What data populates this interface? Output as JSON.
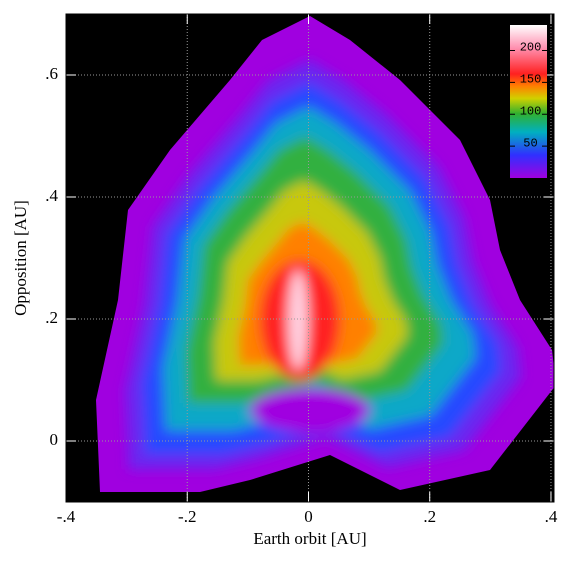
{
  "chart_data": {
    "type": "heatmap",
    "x_label": "Earth orbit [AU]",
    "y_label": "Opposition [AU]",
    "xlim": [
      -0.4,
      0.405
    ],
    "ylim": [
      -0.1,
      0.7
    ],
    "xticks": [
      {
        "value": -0.4,
        "label": "-.4"
      },
      {
        "value": -0.2,
        "label": "-.2"
      },
      0,
      {
        "value": 0.2,
        "label": ".2"
      },
      {
        "value": 0.4,
        "label": ".4"
      }
    ],
    "yticks": [
      0,
      {
        "value": 0.2,
        "label": ".2"
      },
      {
        "value": 0.4,
        "label": ".4"
      },
      {
        "value": 0.6,
        "label": ".6"
      }
    ],
    "grid": true,
    "colorbar": {
      "clim": [
        0,
        240
      ],
      "ticks": [
        50,
        100,
        150,
        200
      ],
      "location": "upper right"
    }
  }
}
